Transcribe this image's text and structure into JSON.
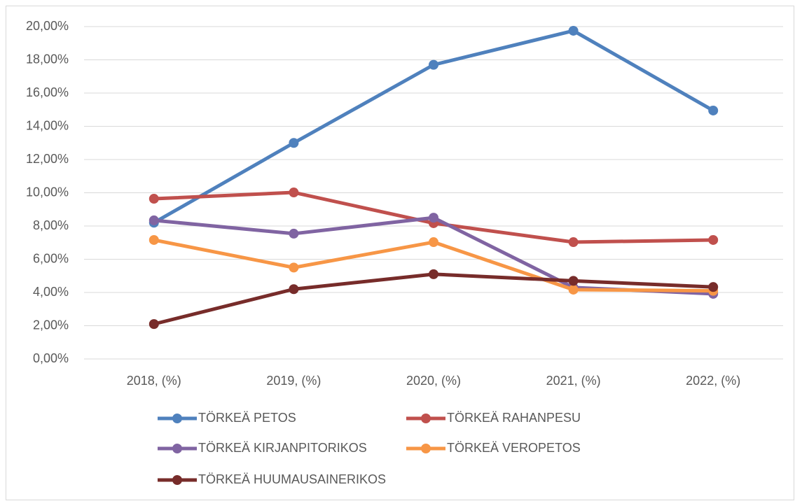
{
  "chart_data": {
    "type": "line",
    "categories": [
      "2018, (%)",
      "2019, (%)",
      "2020, (%)",
      "2021, (%)",
      "2022, (%)"
    ],
    "series": [
      {
        "name": "TÖRKEÄ PETOS",
        "color": "#4f81bd",
        "values": [
          8.2,
          13.0,
          17.7,
          19.75,
          14.95
        ]
      },
      {
        "name": "TÖRKEÄ RAHANPESU",
        "color": "#c0504d",
        "values": [
          9.64,
          10.02,
          8.17,
          7.03,
          7.16
        ]
      },
      {
        "name": "TÖRKEÄ KIRJANPITORIKOS",
        "color": "#8064a2",
        "values": [
          8.34,
          7.54,
          8.5,
          4.3,
          3.92
        ]
      },
      {
        "name": "TÖRKEÄ VEROPETOS",
        "color": "#f79646",
        "values": [
          7.16,
          5.5,
          7.03,
          4.17,
          4.1
        ]
      },
      {
        "name": "TÖRKEÄ HUUMAUSAINERIKOS",
        "color": "#772c2a",
        "values": [
          2.1,
          4.2,
          5.1,
          4.7,
          4.33
        ]
      }
    ],
    "ylim": [
      0,
      20
    ],
    "yticks": [
      {
        "value": 0,
        "label": "0,00%"
      },
      {
        "value": 2,
        "label": "2,00%"
      },
      {
        "value": 4,
        "label": "4,00%"
      },
      {
        "value": 6,
        "label": "6,00%"
      },
      {
        "value": 8,
        "label": "8,00%"
      },
      {
        "value": 10,
        "label": "10,00%"
      },
      {
        "value": 12,
        "label": "12,00%"
      },
      {
        "value": 14,
        "label": "14,00%"
      },
      {
        "value": 16,
        "label": "16,00%"
      },
      {
        "value": 18,
        "label": "18,00%"
      },
      {
        "value": 20,
        "label": "20,00%"
      }
    ],
    "grid": true,
    "legend": "bottom"
  }
}
